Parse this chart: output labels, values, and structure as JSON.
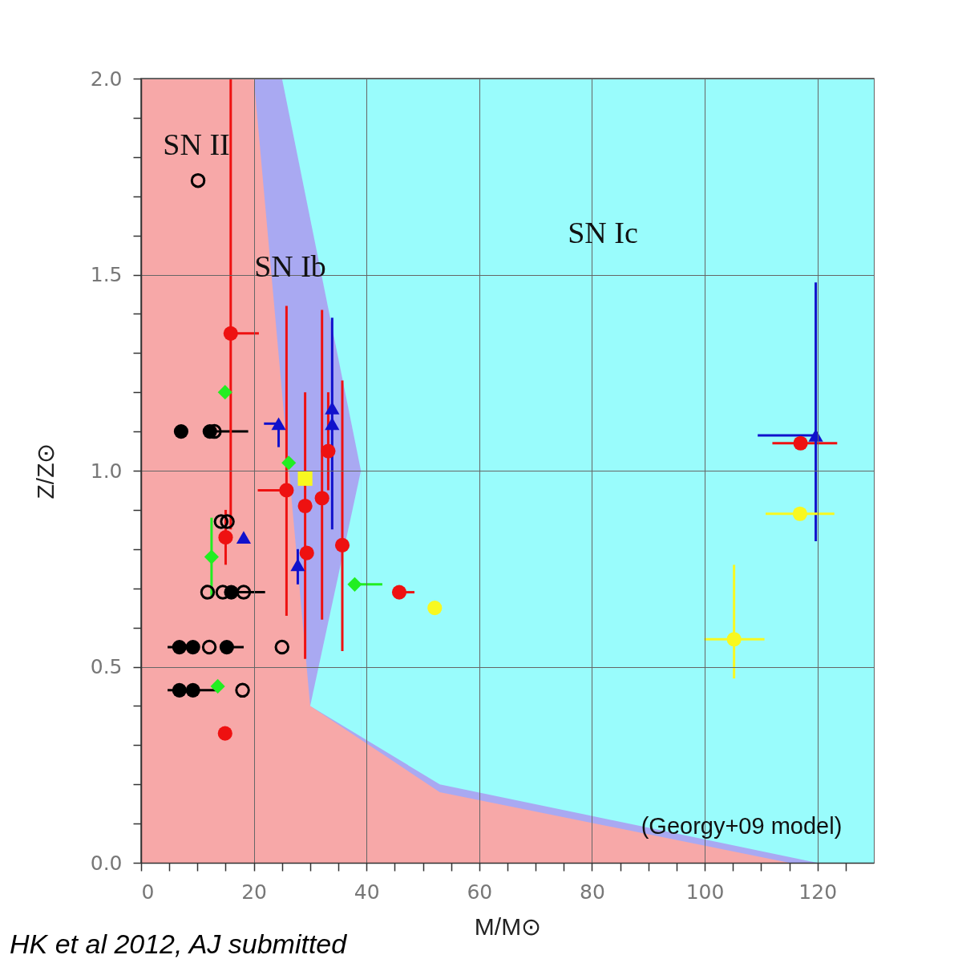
{
  "chart_data": {
    "type": "scatter",
    "xlabel": "M/M⊙",
    "ylabel": "Z/Z⊙",
    "xlim": [
      0,
      130
    ],
    "ylim": [
      0,
      2.0
    ],
    "xticks": [
      0,
      {
        "value": 5,
        "label": null
      },
      {
        "value": 10,
        "label": null
      },
      {
        "value": 15,
        "label": null
      },
      20,
      {
        "value": 25,
        "label": null
      },
      {
        "value": 30,
        "label": null
      },
      {
        "value": 35,
        "label": null
      },
      40,
      {
        "value": 45,
        "label": null
      },
      {
        "value": 50,
        "label": null
      },
      {
        "value": 55,
        "label": null
      },
      60,
      {
        "value": 65,
        "label": null
      },
      {
        "value": 70,
        "label": null
      },
      {
        "value": 75,
        "label": null
      },
      80,
      {
        "value": 85,
        "label": null
      },
      {
        "value": 90,
        "label": null
      },
      {
        "value": 95,
        "label": null
      },
      100,
      {
        "value": 105,
        "label": null
      },
      {
        "value": 110,
        "label": null
      },
      {
        "value": 115,
        "label": null
      },
      120,
      {
        "value": 125,
        "label": null
      }
    ],
    "yticks": [
      {
        "value": 0,
        "label": "0.0"
      },
      {
        "value": 0.1,
        "label": null
      },
      {
        "value": 0.2,
        "label": null
      },
      {
        "value": 0.3,
        "label": null
      },
      {
        "value": 0.4,
        "label": null
      },
      {
        "value": 0.5,
        "label": "0.5"
      },
      {
        "value": 0.6,
        "label": null
      },
      {
        "value": 0.7,
        "label": null
      },
      {
        "value": 0.8,
        "label": null
      },
      {
        "value": 0.9,
        "label": null
      },
      {
        "value": 1.0,
        "label": "1.0"
      },
      {
        "value": 1.1,
        "label": null
      },
      {
        "value": 1.2,
        "label": null
      },
      {
        "value": 1.3,
        "label": null
      },
      {
        "value": 1.4,
        "label": null
      },
      {
        "value": 1.5,
        "label": "1.5"
      },
      {
        "value": 1.6,
        "label": null
      },
      {
        "value": 1.7,
        "label": null
      },
      {
        "value": 1.8,
        "label": null
      },
      {
        "value": 1.9,
        "label": null
      },
      {
        "value": 2.0,
        "label": "2.0"
      }
    ],
    "grid": true,
    "series": [
      {
        "type": "area",
        "color": "#99fcfc",
        "x": [
          25,
          130
        ],
        "values": [
          2.0,
          2.0
        ]
      },
      {
        "type": "area",
        "color": "#a9a9f2",
        "x": [
          20,
          25,
          39
        ],
        "values": [
          2.0,
          2.0,
          1.0
        ]
      },
      {
        "type": "area",
        "color": "#99fcfc",
        "x": [
          30,
          39
        ],
        "values": [
          0.4,
          1.0
        ]
      },
      {
        "type": "area",
        "color": "#a9a9f2",
        "x": [
          30,
          53,
          120
        ],
        "values": [
          0.4,
          0.2,
          0
        ]
      },
      {
        "type": "area",
        "color": "#f7a8a8",
        "x": [
          0,
          20,
          30,
          53,
          115
        ],
        "values": [
          2.0,
          2.0,
          0.4,
          0.18,
          0
        ]
      },
      {
        "type": "scatter",
        "marker": "circle",
        "color": "#000000",
        "x": [
          7.1,
          12.2,
          15.3,
          16.0,
          6.8,
          9.2,
          15.2,
          6.8,
          9.2
        ],
        "values": [
          1.1,
          1.1,
          null,
          0.69,
          0.55,
          0.55,
          0.55,
          0.44,
          0.44
        ],
        "xerrors": [
          null,
          [
            12.2,
            19.0
          ],
          null,
          [
            16.0,
            22.0
          ],
          [
            4.7,
            6.8
          ],
          null,
          [
            15.2,
            18.2
          ],
          [
            4.7,
            13.3
          ],
          null
        ]
      },
      {
        "type": "scatter",
        "marker": "circle",
        "color": "#000000",
        "x": [
          10.1,
          13.0,
          14.2,
          15.3,
          11.8,
          14.5,
          18.2,
          12.1,
          25.0,
          18.0
        ],
        "values": [
          1.74,
          1.1,
          0.87,
          0.87,
          0.69,
          0.69,
          0.69,
          0.55,
          0.55,
          0.44
        ]
      },
      {
        "type": "scatter",
        "marker": "circle",
        "color": "#ee1111",
        "x": [
          15.9,
          15.0,
          14.9,
          25.8,
          29.1,
          29.4,
          32.1,
          33.2,
          35.7,
          45.8,
          117.0
        ],
        "values": [
          1.35,
          0.83,
          0.33,
          0.95,
          0.91,
          0.79,
          0.93,
          1.05,
          0.81,
          0.69,
          1.07
        ],
        "errors": [
          [
            0.85,
            2.0
          ],
          [
            0.76,
            0.9
          ],
          null,
          [
            0.63,
            1.42
          ],
          [
            0.52,
            1.2
          ],
          null,
          [
            0.62,
            1.41
          ],
          [
            0.95,
            1.2
          ],
          [
            0.54,
            1.23
          ],
          null,
          null
        ],
        "xerrors": [
          [
            15.9,
            20.9
          ],
          null,
          null,
          [
            20.7,
            25.8
          ],
          null,
          null,
          null,
          null,
          null,
          [
            45.8,
            48.5
          ],
          [
            112.0,
            123.5
          ]
        ]
      },
      {
        "type": "scatter",
        "marker": "triangle",
        "color": "#1111cc",
        "x": [
          24.4,
          18.2,
          27.8,
          33.9,
          33.9,
          119.7
        ],
        "values": [
          1.12,
          0.83,
          0.76,
          1.16,
          1.12,
          1.09
        ],
        "errors": [
          [
            1.06,
            1.12
          ],
          null,
          [
            0.71,
            0.8
          ],
          [
            0.85,
            1.39
          ],
          null,
          [
            0.82,
            1.48
          ]
        ],
        "xerrors": [
          [
            21.8,
            24.4
          ],
          null,
          null,
          null,
          null,
          [
            109.4,
            119.7
          ]
        ]
      },
      {
        "type": "scatter",
        "marker": "diamond",
        "color": "#22ee22",
        "x": [
          14.9,
          26.2,
          12.5,
          37.9,
          13.6
        ],
        "values": [
          1.2,
          1.02,
          0.78,
          0.71,
          0.45
        ],
        "errors": [
          null,
          null,
          [
            0.68,
            0.88
          ],
          null,
          null
        ],
        "xerrors": [
          null,
          null,
          null,
          [
            37.9,
            42.8
          ],
          null
        ]
      },
      {
        "type": "scatter",
        "marker": "circle",
        "color": "#f8f820",
        "x": [
          105.2,
          116.9,
          52.1
        ],
        "values": [
          0.57,
          0.89,
          0.65
        ],
        "errors": [
          [
            0.47,
            0.76
          ],
          null,
          null
        ],
        "xerrors": [
          [
            99.9,
            110.6
          ],
          [
            110.8,
            123.0
          ],
          null
        ]
      },
      {
        "type": "scatter",
        "marker": "square",
        "color": "#f8f820",
        "x": [
          29.1
        ],
        "values": [
          0.98
        ]
      }
    ],
    "annotations": [
      "SN II",
      "SN Ib",
      "SN Ic",
      "(Georgy+09 model)",
      "HK et al 2012, AJ submitted"
    ]
  }
}
